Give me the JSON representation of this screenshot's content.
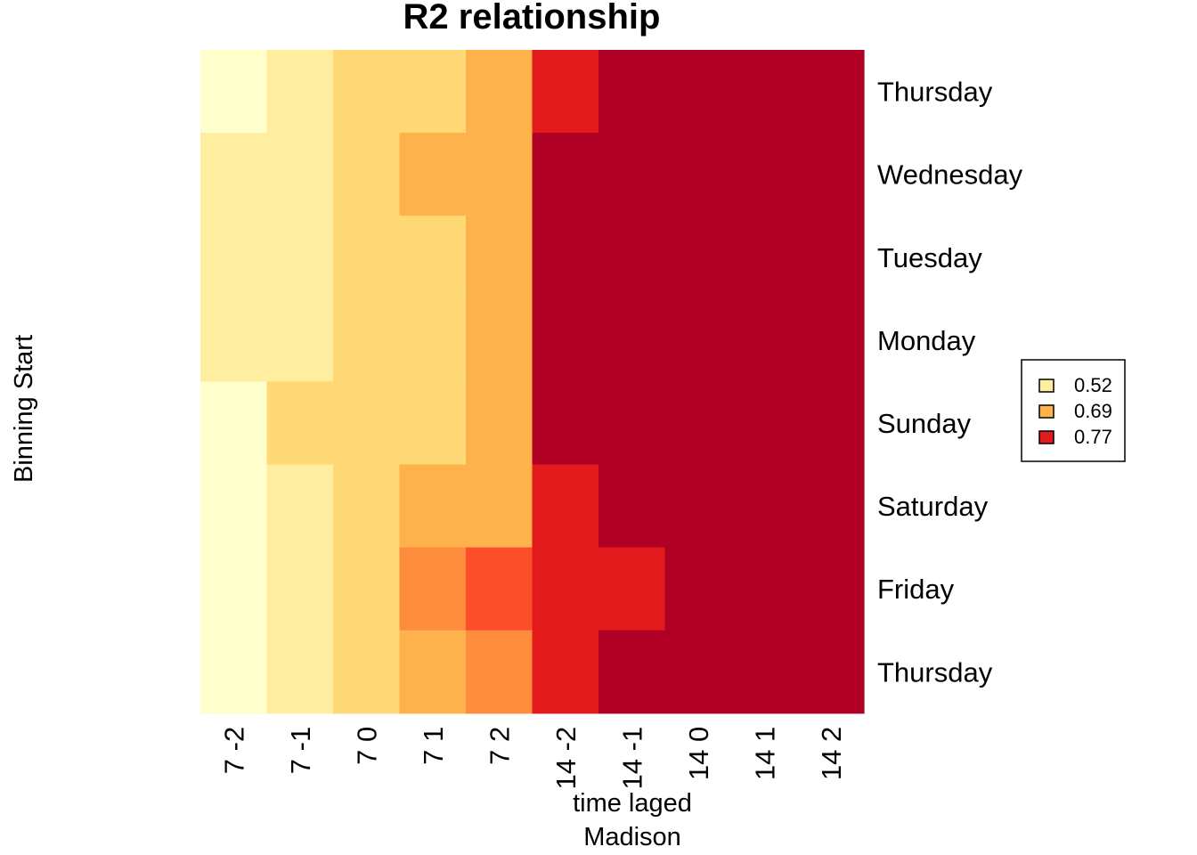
{
  "chart_data": {
    "type": "heatmap",
    "title": "R2 relationship",
    "xlabel": "time laged",
    "xlabel_sub": "Madison",
    "ylabel": "Binning Start",
    "columns": [
      "7 -2",
      "7 -1",
      "7 0",
      "7 1",
      "7 2",
      "14 -2",
      "14 -1",
      "14 0",
      "14 1",
      "14 2"
    ],
    "rows": [
      "Thursday",
      "Wednesday",
      "Tuesday",
      "Monday",
      "Sunday",
      "Saturday",
      "Friday",
      "Thursday"
    ],
    "palette": [
      "#FFFFCC",
      "#FFEDA0",
      "#FED976",
      "#FEB24C",
      "#FD8D3C",
      "#FC4E2A",
      "#E31A1C",
      "#B10026"
    ],
    "matrix_level_index": [
      [
        0,
        1,
        2,
        2,
        3,
        6,
        7,
        7,
        7,
        7
      ],
      [
        1,
        1,
        2,
        3,
        3,
        7,
        7,
        7,
        7,
        7
      ],
      [
        1,
        1,
        2,
        2,
        3,
        7,
        7,
        7,
        7,
        7
      ],
      [
        1,
        1,
        2,
        2,
        3,
        7,
        7,
        7,
        7,
        7
      ],
      [
        0,
        2,
        2,
        2,
        3,
        7,
        7,
        7,
        7,
        7
      ],
      [
        0,
        1,
        2,
        3,
        3,
        6,
        7,
        7,
        7,
        7
      ],
      [
        0,
        1,
        2,
        4,
        5,
        6,
        6,
        7,
        7,
        7
      ],
      [
        0,
        1,
        2,
        3,
        4,
        6,
        7,
        7,
        7,
        7
      ]
    ],
    "legend": {
      "position": "right",
      "entries": [
        {
          "label": "0.52",
          "color": "#FFEDA0"
        },
        {
          "label": "0.69",
          "color": "#FEB24C"
        },
        {
          "label": "0.77",
          "color": "#E31A1C"
        }
      ]
    }
  }
}
